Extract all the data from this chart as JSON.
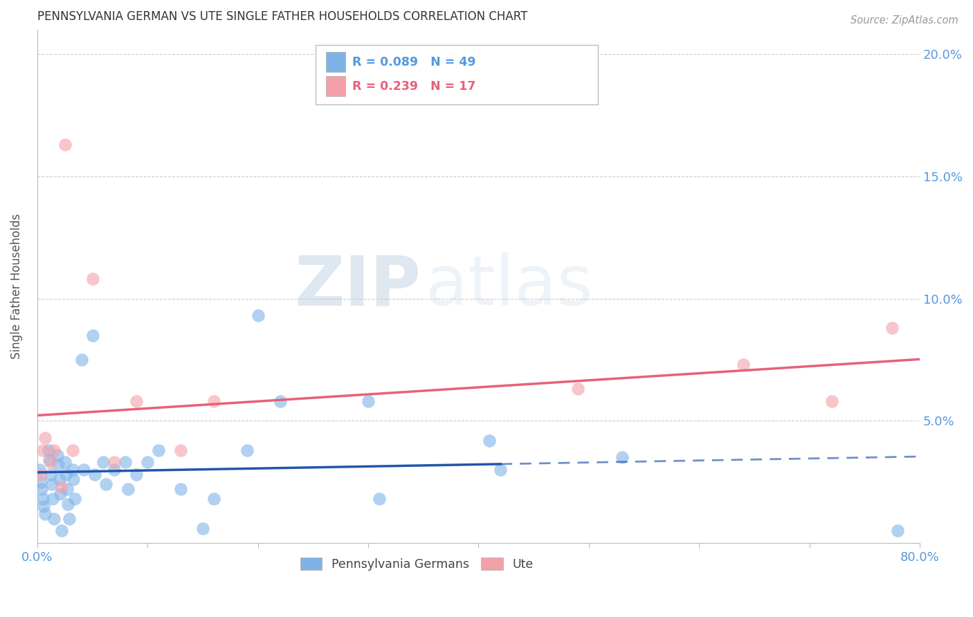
{
  "title": "PENNSYLVANIA GERMAN VS UTE SINGLE FATHER HOUSEHOLDS CORRELATION CHART",
  "source": "Source: ZipAtlas.com",
  "ylabel": "Single Father Households",
  "xlim": [
    0.0,
    0.8
  ],
  "ylim": [
    0.0,
    0.21
  ],
  "watermark_zip": "ZIP",
  "watermark_atlas": "atlas",
  "blue_color": "#7FB3E8",
  "pink_color": "#F4A0A8",
  "blue_line_color": "#2255AA",
  "pink_line_color": "#E8607A",
  "background_color": "#FFFFFF",
  "grid_color": "#CCCCCC",
  "pg_x": [
    0.002,
    0.003,
    0.004,
    0.005,
    0.006,
    0.007,
    0.01,
    0.011,
    0.012,
    0.013,
    0.014,
    0.015,
    0.018,
    0.019,
    0.02,
    0.021,
    0.022,
    0.025,
    0.026,
    0.027,
    0.028,
    0.029,
    0.032,
    0.033,
    0.034,
    0.04,
    0.042,
    0.05,
    0.052,
    0.06,
    0.062,
    0.07,
    0.08,
    0.082,
    0.09,
    0.1,
    0.11,
    0.13,
    0.15,
    0.16,
    0.19,
    0.2,
    0.22,
    0.3,
    0.31,
    0.41,
    0.42,
    0.53,
    0.78
  ],
  "pg_y": [
    0.03,
    0.025,
    0.022,
    0.018,
    0.015,
    0.012,
    0.038,
    0.034,
    0.028,
    0.024,
    0.018,
    0.01,
    0.036,
    0.032,
    0.026,
    0.02,
    0.005,
    0.033,
    0.028,
    0.022,
    0.016,
    0.01,
    0.03,
    0.026,
    0.018,
    0.075,
    0.03,
    0.085,
    0.028,
    0.033,
    0.024,
    0.03,
    0.033,
    0.022,
    0.028,
    0.033,
    0.038,
    0.022,
    0.006,
    0.018,
    0.038,
    0.093,
    0.058,
    0.058,
    0.018,
    0.042,
    0.03,
    0.035,
    0.005
  ],
  "ute_x": [
    0.003,
    0.005,
    0.007,
    0.012,
    0.015,
    0.022,
    0.025,
    0.032,
    0.05,
    0.07,
    0.09,
    0.13,
    0.16,
    0.49,
    0.64,
    0.72,
    0.775
  ],
  "ute_y": [
    0.028,
    0.038,
    0.043,
    0.033,
    0.038,
    0.023,
    0.163,
    0.038,
    0.108,
    0.033,
    0.058,
    0.038,
    0.058,
    0.063,
    0.073,
    0.058,
    0.088
  ]
}
